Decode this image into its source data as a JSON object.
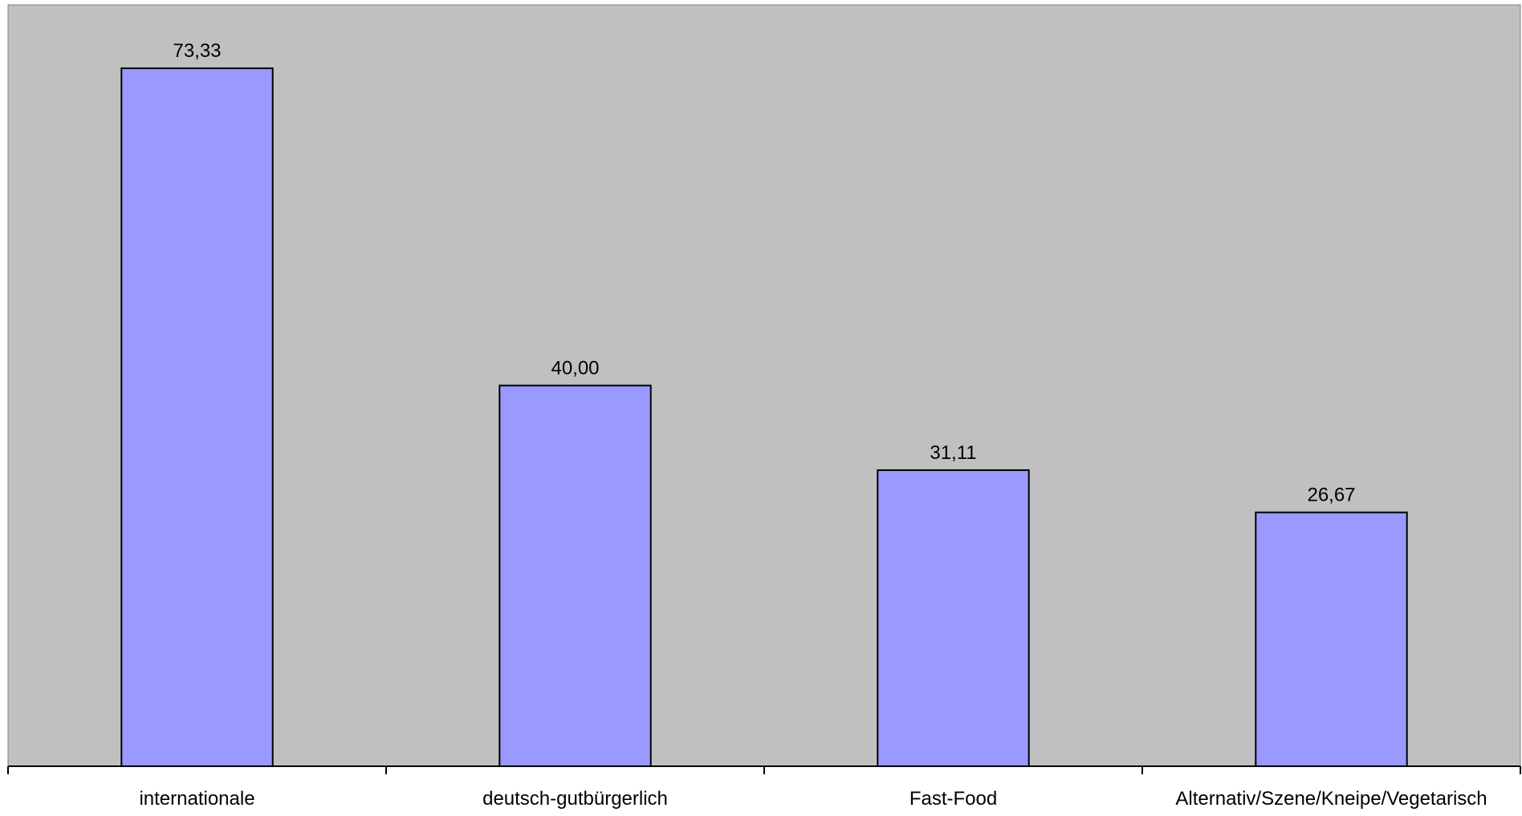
{
  "chart_data": {
    "type": "bar",
    "categories": [
      "internationale",
      "deutsch-gutbürgerlich",
      "Fast-Food",
      "Alternativ/Szene/Kneipe/Vegetarisch"
    ],
    "values": [
      73.33,
      40.0,
      31.11,
      26.67
    ],
    "data_labels": [
      "73,33",
      "40,00",
      "31,11",
      "26,67"
    ],
    "title": "",
    "xlabel": "",
    "ylabel": "",
    "ylim": [
      0,
      80
    ],
    "grid": false,
    "legend": "none",
    "colors": {
      "plot_background": "#c0c0c0",
      "bar_fill": "#9999ff",
      "bar_stroke": "#000000",
      "axis": "#000000",
      "text": "#000000"
    }
  }
}
